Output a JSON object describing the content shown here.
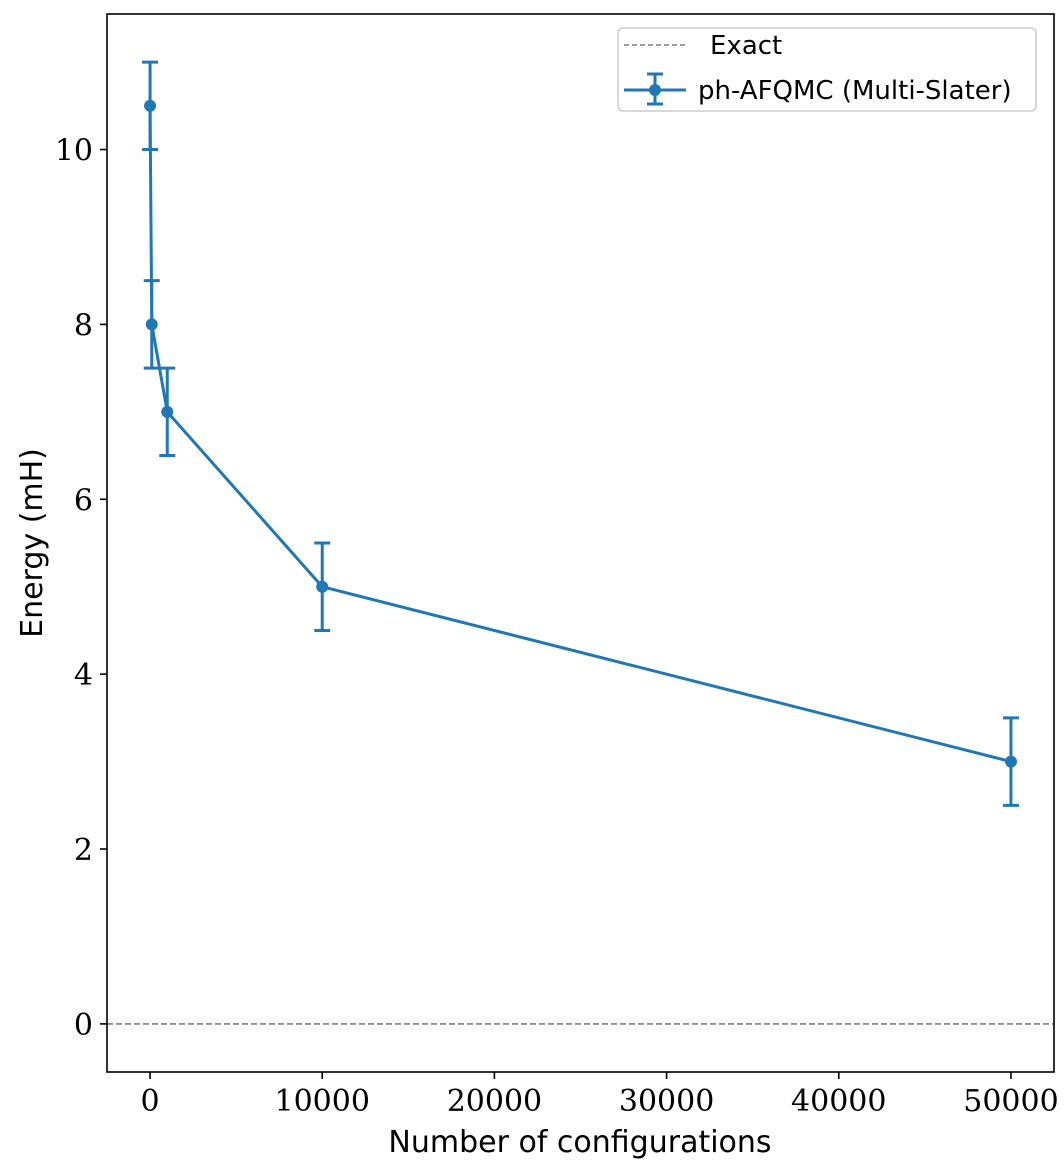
{
  "chart_data": {
    "type": "line",
    "title": "",
    "xlabel": "Number of configurations",
    "ylabel": "Energy (mH)",
    "xlim": [
      -2500,
      52500
    ],
    "ylim": [
      -0.55,
      11.55
    ],
    "xticks": [
      0,
      10000,
      20000,
      30000,
      40000,
      50000
    ],
    "yticks": [
      0,
      2,
      4,
      6,
      8,
      10
    ],
    "xtick_labels": [
      "0",
      "10000",
      "20000",
      "30000",
      "40000",
      "50000"
    ],
    "ytick_labels": [
      "0",
      "2",
      "4",
      "6",
      "8",
      "10"
    ],
    "grid": false,
    "legend_position": "top-right",
    "series": [
      {
        "name": "ph-AFQMC (Multi-Slater)",
        "color": "#1f77b4",
        "x": [
          1,
          100,
          1000,
          10000,
          50000
        ],
        "y": [
          10.5,
          8.0,
          7.0,
          5.0,
          3.0
        ],
        "yerr": [
          0.5,
          0.5,
          0.5,
          0.5,
          0.5
        ]
      }
    ],
    "reference_lines": [
      {
        "name": "Exact",
        "y": 0,
        "color": "#7f7f7f",
        "style": "dashed"
      }
    ]
  }
}
